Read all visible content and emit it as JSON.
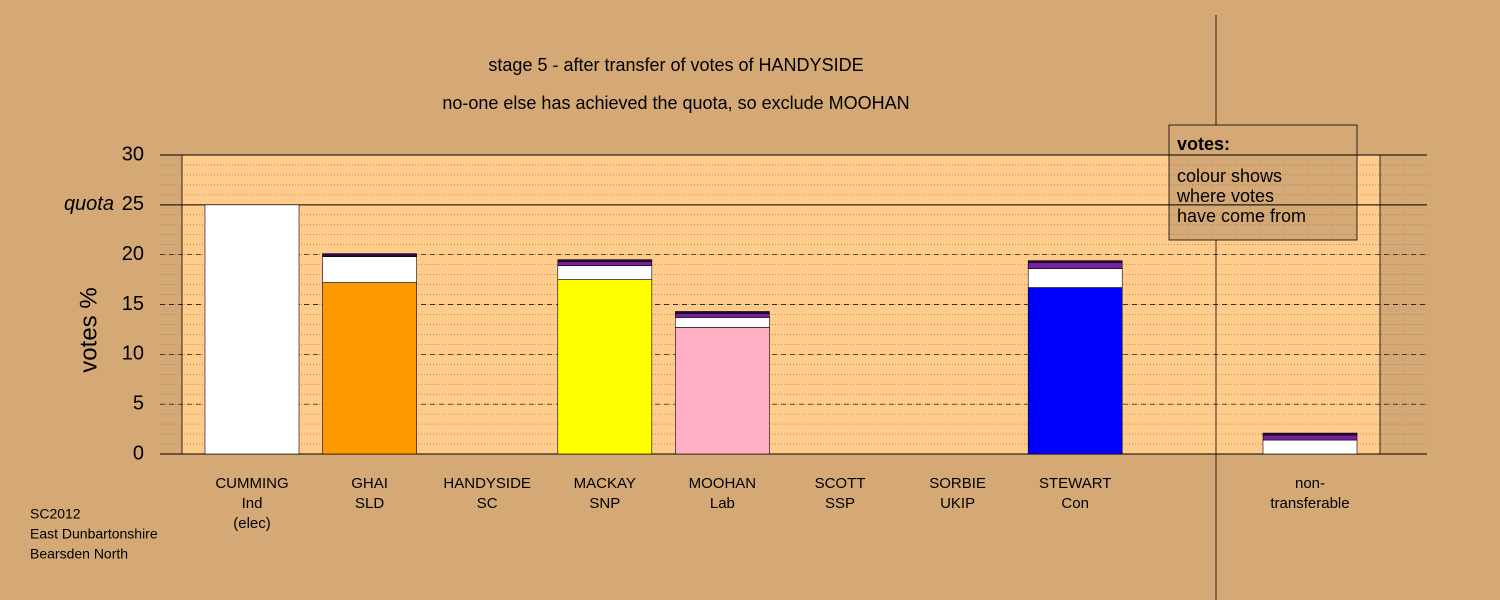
{
  "chart_data": {
    "type": "stacked-bar",
    "title": "stage 5 - after transfer of votes of HANDYSIDE",
    "subtitle": "no-one else has achieved the quota, so exclude MOOHAN",
    "y_label": "votes %",
    "categories": [
      [
        "CUMMING",
        "Ind",
        "(elec)"
      ],
      [
        "GHAI",
        "SLD"
      ],
      [
        "HANDYSIDE",
        "SC"
      ],
      [
        "MACKAY",
        "SNP"
      ],
      [
        "MOOHAN",
        "Lab"
      ],
      [
        "SCOTT",
        "SSP"
      ],
      [
        "SORBIE",
        "UKIP"
      ],
      [
        "STEWART",
        "Con"
      ],
      [
        "non-",
        "transferable"
      ]
    ],
    "series": [
      {
        "colors": [
          "#ffffff",
          "#ff9900",
          "#ffffff",
          "#ffff00",
          "#ffb0c4",
          "#ffffff",
          "#ffffff",
          "#0000ff",
          "#ffffff"
        ],
        "values": [
          25,
          17.2,
          0,
          17.5,
          12.7,
          0,
          0,
          16.7,
          0
        ]
      },
      {
        "color": "#ffffff",
        "values": [
          0,
          2.6,
          0,
          1.4,
          1.0,
          0,
          0,
          1.9,
          1.4
        ]
      },
      {
        "color": "#7a1fa0",
        "values": [
          0,
          0,
          0,
          0.4,
          0.4,
          0,
          0,
          0.6,
          0.5
        ]
      },
      {
        "color": "#2a0845",
        "values": [
          0,
          0.3,
          0,
          0.2,
          0.2,
          0,
          0,
          0.2,
          0.2
        ]
      }
    ],
    "ylim": [
      0,
      30
    ],
    "yticks": [
      0,
      5,
      10,
      15,
      20,
      25,
      30
    ],
    "minor_tick_step": 1,
    "quota": {
      "value": 25,
      "label": "quota"
    },
    "legend_title": "votes:",
    "legend_text": [
      "colour shows",
      "where votes",
      "have come from"
    ],
    "footer": [
      "SC2012",
      "East Dunbartonshire",
      "Bearsden North"
    ]
  }
}
